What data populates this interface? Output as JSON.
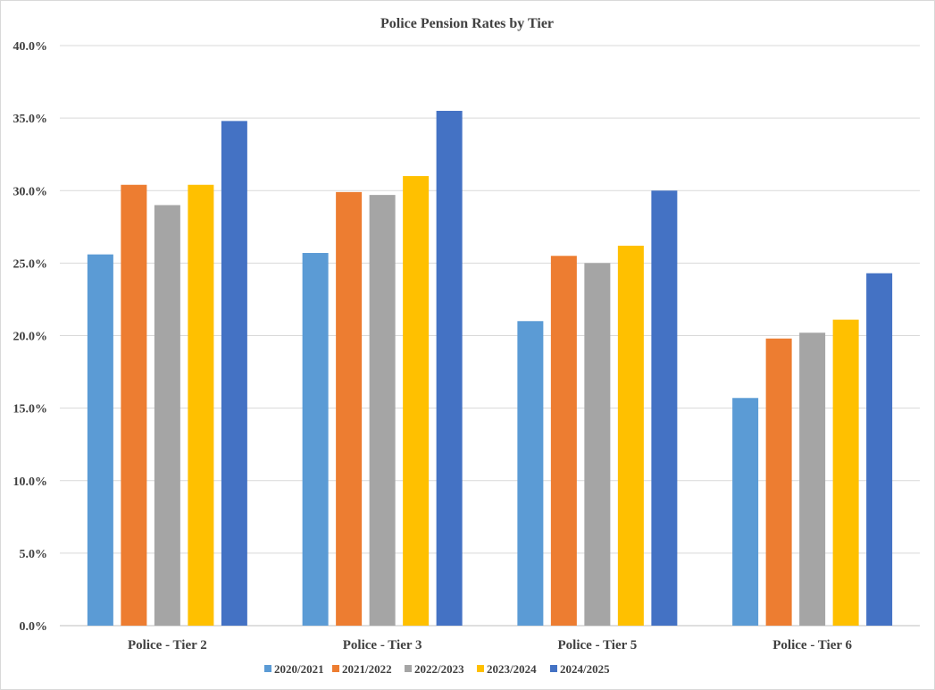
{
  "chart_data": {
    "type": "bar",
    "title": "Police Pension Rates by Tier",
    "xlabel": "",
    "ylabel": "",
    "ylim": [
      0,
      40
    ],
    "y_tick_step": 5,
    "y_tick_format": "percent_1dp",
    "grid": true,
    "legend_position": "bottom",
    "categories": [
      "Police - Tier 2",
      "Police - Tier 3",
      "Police - Tier 5",
      "Police - Tier 6"
    ],
    "series": [
      {
        "name": "2020/2021",
        "color": "#5b9bd5",
        "values": [
          25.6,
          25.7,
          21.0,
          15.7
        ]
      },
      {
        "name": "2021/2022",
        "color": "#ed7d31",
        "values": [
          30.4,
          29.9,
          25.5,
          19.8
        ]
      },
      {
        "name": "2022/2023",
        "color": "#a5a5a5",
        "values": [
          29.0,
          29.7,
          25.0,
          20.2
        ]
      },
      {
        "name": "2023/2024",
        "color": "#ffc000",
        "values": [
          30.4,
          31.0,
          26.2,
          21.1
        ]
      },
      {
        "name": "2024/2025",
        "color": "#4472c4",
        "values": [
          34.8,
          35.5,
          30.0,
          24.3
        ]
      }
    ]
  }
}
